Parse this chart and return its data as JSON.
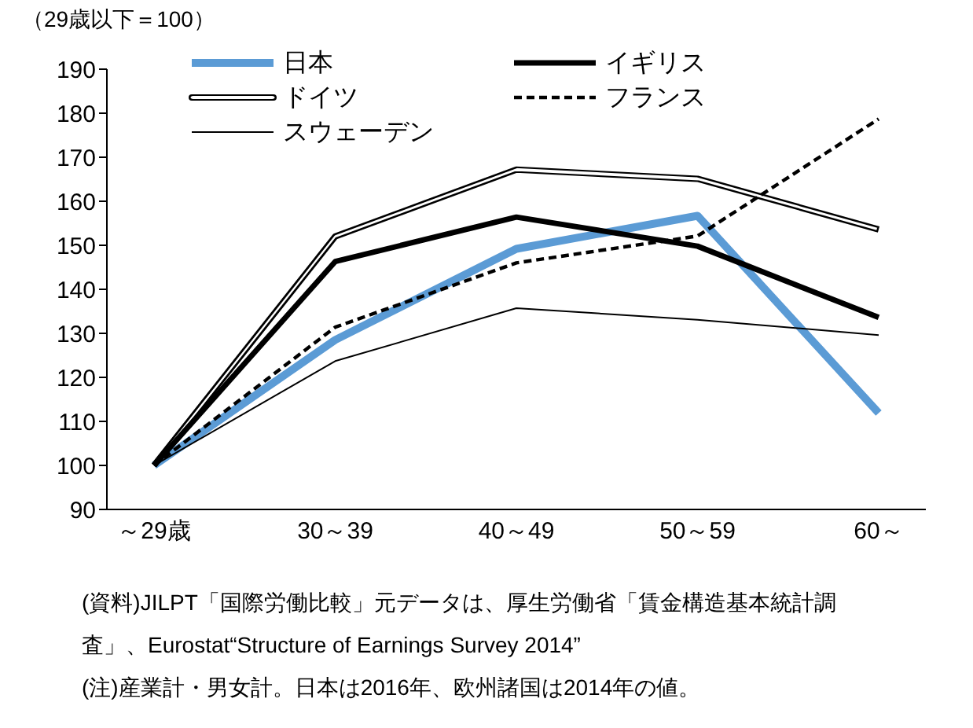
{
  "chart_data": {
    "type": "line",
    "ylabel": "（29歳以下＝100）",
    "categories": [
      "～29歳",
      "30～39",
      "40～49",
      "50～59",
      "60～"
    ],
    "series": [
      {
        "name": "日本",
        "color": "#5b9bd5",
        "values": [
          100,
          128.5,
          149.2,
          156.7,
          111.9
        ]
      },
      {
        "name": "イギリス",
        "color": "#000000",
        "values": [
          100,
          146.3,
          156.4,
          149.8,
          133.6
        ]
      },
      {
        "name": "ドイツ",
        "color": "#000000",
        "line_style": "solid",
        "values": [
          100,
          152,
          167.2,
          165.1,
          153.6
        ]
      },
      {
        "name": "フランス",
        "color": "#000000",
        "line_style": "dashed",
        "values": [
          100,
          131.4,
          146,
          152.1,
          178.7
        ]
      },
      {
        "name": "スウェーデン",
        "color": "#000000",
        "values": [
          100,
          123.7,
          135.7,
          133.1,
          129.6
        ]
      }
    ],
    "ylim": [
      90,
      190
    ],
    "yticks": [
      90,
      100,
      110,
      120,
      130,
      140,
      150,
      160,
      170,
      180,
      190
    ],
    "grid": false,
    "legend": "top left",
    "marker": "none",
    "annotations": [
      "(資料)JILPT「国際労働比較」元データは、厚生労働省「賃金構造基本統計調査」、Eurostat“Structure of Earnings Survey 2014”",
      "(注)産業計・男女計。日本は2016年、欧州諸国は2014年の値。"
    ]
  }
}
